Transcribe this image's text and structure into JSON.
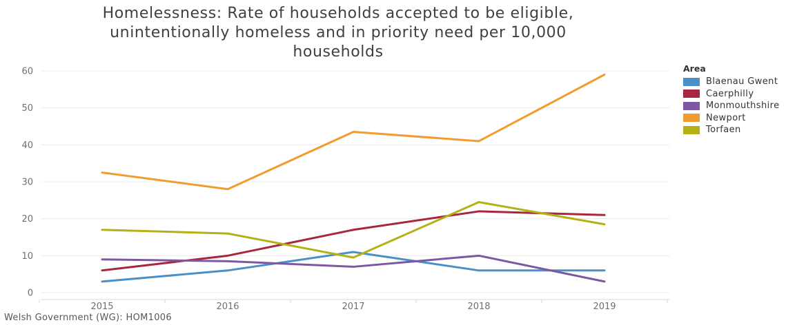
{
  "chart_data": {
    "type": "line",
    "title": "Homelessness: Rate of households accepted to be eligible,\nunintentionally homeless and in priority need per 10,000\nhouseholds",
    "xlabel": "",
    "ylabel": "",
    "x": [
      "2015",
      "2016",
      "2017",
      "2018",
      "2019"
    ],
    "ylim": [
      0,
      62
    ],
    "yticks": [
      0,
      10,
      20,
      30,
      40,
      50,
      60
    ],
    "grid": true,
    "legend_title": "Area",
    "legend_position": "right",
    "series": [
      {
        "name": "Blaenau Gwent",
        "color": "#4a90c8",
        "values": [
          3,
          6,
          11,
          6,
          6
        ]
      },
      {
        "name": "Caerphilly",
        "color": "#a8263e",
        "values": [
          6,
          10,
          17,
          22,
          21
        ]
      },
      {
        "name": "Monmouthshire",
        "color": "#7d57a3",
        "values": [
          9,
          8.5,
          7,
          10,
          3
        ]
      },
      {
        "name": "Newport",
        "color": "#f29b2f",
        "values": [
          32.5,
          28,
          43.5,
          41,
          59
        ]
      },
      {
        "name": "Torfaen",
        "color": "#b5b015",
        "values": [
          17,
          16,
          9.5,
          24.5,
          18.5
        ]
      }
    ],
    "source": "Welsh Government (WG): HOM1006"
  }
}
